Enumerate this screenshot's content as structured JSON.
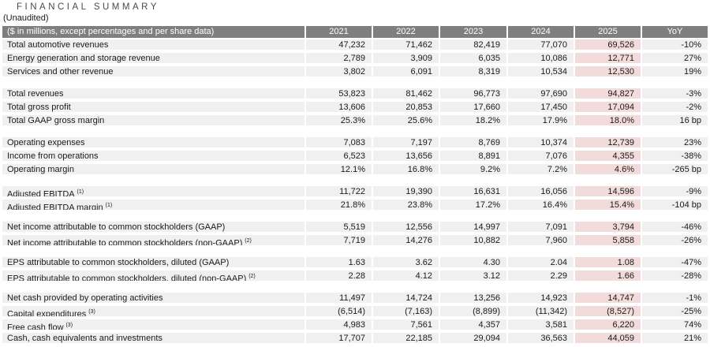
{
  "colors": {
    "header_bg": "#7f7f7f",
    "row_bg": "#f0f0f0",
    "highlight_bg": "#f2dcdb"
  },
  "title": "FINANCIAL SUMMARY",
  "subtitle": "(Unaudited)",
  "table": {
    "header_label": "($ in millions, except percentages and per share data)",
    "years": [
      "2021",
      "2022",
      "2023",
      "2024",
      "2025"
    ],
    "yoy_label": "YoY",
    "highlight_year": "2025",
    "sections": [
      {
        "rows": [
          {
            "label": "Total automotive revenues",
            "values": [
              "47,232",
              "71,462",
              "82,419",
              "77,070",
              "69,526"
            ],
            "yoy": "-10%"
          },
          {
            "label": "Energy generation and storage revenue",
            "values": [
              "2,789",
              "3,909",
              "6,035",
              "10,086",
              "12,771"
            ],
            "yoy": "27%"
          },
          {
            "label": "Services and other revenue",
            "values": [
              "3,802",
              "6,091",
              "8,319",
              "10,534",
              "12,530"
            ],
            "yoy": "19%"
          }
        ]
      },
      {
        "rows": [
          {
            "label": "Total revenues",
            "values": [
              "53,823",
              "81,462",
              "96,773",
              "97,690",
              "94,827"
            ],
            "yoy": "-3%"
          },
          {
            "label": "Total gross profit",
            "values": [
              "13,606",
              "20,853",
              "17,660",
              "17,450",
              "17,094"
            ],
            "yoy": "-2%"
          },
          {
            "label": "Total GAAP gross margin",
            "values": [
              "25.3%",
              "25.6%",
              "18.2%",
              "17.9%",
              "18.0%"
            ],
            "yoy": "16 bp"
          }
        ]
      },
      {
        "rows": [
          {
            "label": "Operating expenses",
            "values": [
              "7,083",
              "7,197",
              "8,769",
              "10,374",
              "12,739"
            ],
            "yoy": "23%"
          },
          {
            "label": "Income from operations",
            "values": [
              "6,523",
              "13,656",
              "8,891",
              "7,076",
              "4,355"
            ],
            "yoy": "-38%"
          },
          {
            "label": "Operating margin",
            "values": [
              "12.1%",
              "16.8%",
              "9.2%",
              "7.2%",
              "4.6%"
            ],
            "yoy": "-265 bp"
          }
        ]
      },
      {
        "rows": [
          {
            "label": "Adjusted EBITDA",
            "sup": "(1)",
            "values": [
              "11,722",
              "19,390",
              "16,631",
              "16,056",
              "14,596"
            ],
            "yoy": "-9%"
          },
          {
            "label": "Adjusted EBITDA margin",
            "sup": "(1)",
            "values": [
              "21.8%",
              "23.8%",
              "17.2%",
              "16.4%",
              "15.4%"
            ],
            "yoy": "-104 bp"
          }
        ]
      },
      {
        "rows": [
          {
            "label": "Net income attributable to common stockholders (GAAP)",
            "values": [
              "5,519",
              "12,556",
              "14,997",
              "7,091",
              "3,794"
            ],
            "yoy": "-46%"
          },
          {
            "label": "Net income attributable to common stockholders (non-GAAP)",
            "sup": "(2)",
            "values": [
              "7,719",
              "14,276",
              "10,882",
              "7,960",
              "5,858"
            ],
            "yoy": "-26%"
          }
        ]
      },
      {
        "rows": [
          {
            "label": "EPS attributable to common stockholders, diluted (GAAP)",
            "values": [
              "1.63",
              "3.62",
              "4.30",
              "2.04",
              "1.08"
            ],
            "yoy": "-47%"
          },
          {
            "label": "EPS attributable to common stockholders, diluted (non-GAAP)",
            "sup": "(2)",
            "values": [
              "2.28",
              "4.12",
              "3.12",
              "2.29",
              "1.66"
            ],
            "yoy": "-28%"
          }
        ]
      },
      {
        "rows": [
          {
            "label": "Net cash provided by operating activities",
            "values": [
              "11,497",
              "14,724",
              "13,256",
              "14,923",
              "14,747"
            ],
            "yoy": "-1%"
          },
          {
            "label": "Capital expenditures",
            "sup": "(3)",
            "values": [
              "(6,514)",
              "(7,163)",
              "(8,899)",
              "(11,342)",
              "(8,527)"
            ],
            "yoy": "-25%"
          },
          {
            "label": "Free cash flow",
            "sup": "(3)",
            "values": [
              "4,983",
              "7,561",
              "4,357",
              "3,581",
              "6,220"
            ],
            "yoy": "74%"
          },
          {
            "label": "Cash, cash equivalents and investments",
            "values": [
              "17,707",
              "22,185",
              "29,094",
              "36,563",
              "44,059"
            ],
            "yoy": "21%"
          }
        ]
      }
    ]
  }
}
